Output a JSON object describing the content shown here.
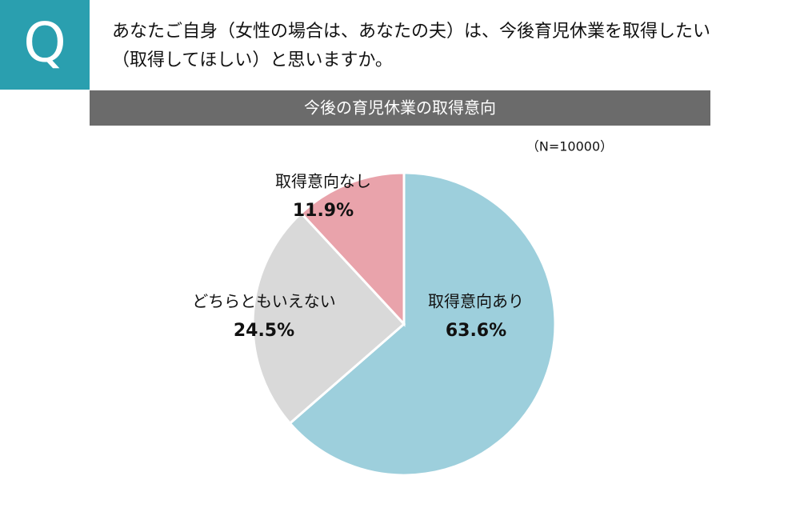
{
  "question": {
    "badge": "Q",
    "lines": [
      "あなたご自身（女性の場合は、あなたの夫）は、今後育児休業を取得したい",
      "（取得してほしい）と思いますか。"
    ]
  },
  "chart_data": {
    "type": "pie",
    "title": "今後の育児休業の取得意向",
    "annotation": "（N=10000）",
    "categories": [
      "取得意向あり",
      "どちらともいえない",
      "取得意向なし"
    ],
    "values": [
      63.6,
      24.5,
      11.9
    ],
    "value_labels": [
      "63.6%",
      "24.5%",
      "11.9%"
    ],
    "colors": [
      "#9dcfdc",
      "#d9d9d9",
      "#e9a3ab"
    ]
  }
}
